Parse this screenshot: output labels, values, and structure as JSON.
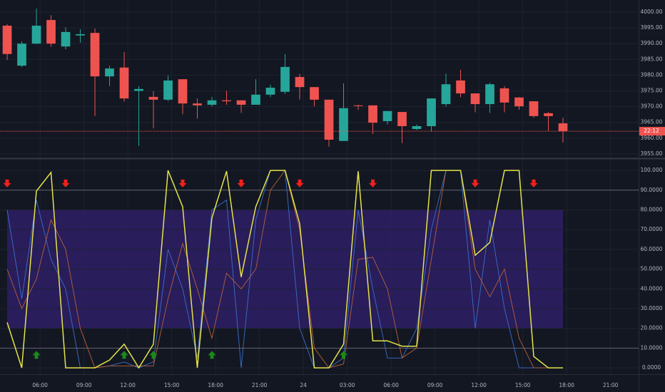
{
  "chart_data": [
    {
      "type": "candlestick",
      "up_color": "#26a69a",
      "down_color": "#ef5350",
      "open": [
        3995.7,
        3983.0,
        3990.0,
        3997.5,
        3989.1,
        3992.6,
        3993.4,
        3979.6,
        3982.4,
        3975.0,
        3973.1,
        3972.2,
        3978.7,
        3971.0,
        3970.6,
        3972.0,
        3972.0,
        3970.6,
        3973.8,
        3974.7,
        3979.4,
        3976.2,
        3972.2,
        3959.1,
        3970.4,
        3970.4,
        3965.4,
        3968.3,
        3962.9,
        3963.8,
        3970.8,
        3978.3,
        3974.2,
        3970.8,
        3975.8,
        3972.9,
        3971.7,
        3967.9,
        3964.7
      ],
      "high": [
        3996.2,
        3990.7,
        4001.1,
        3999.0,
        3995.2,
        3994.6,
        3994.8,
        3983.0,
        3987.3,
        3976.5,
        3974.9,
        3979.9,
        3978.7,
        3972.6,
        3973.1,
        3975.0,
        3972.0,
        3978.7,
        3977.0,
        3986.7,
        3980.4,
        3976.2,
        3972.2,
        3977.4,
        3970.6,
        3970.4,
        3968.6,
        3968.3,
        3964.3,
        3972.6,
        3980.5,
        3981.7,
        3974.2,
        3977.6,
        3976.5,
        3973.0,
        3971.7,
        3968.3,
        3966.5
      ],
      "low": [
        3984.8,
        3982.6,
        3989.8,
        3989.0,
        3988.2,
        3990.3,
        3967.0,
        3976.5,
        3971.6,
        3957.5,
        3963.1,
        3971.7,
        3967.6,
        3966.2,
        3970.0,
        3970.6,
        3968.0,
        3970.6,
        3973.0,
        3974.0,
        3972.2,
        3970.1,
        3957.3,
        3959.1,
        3969.0,
        3961.3,
        3964.3,
        3958.4,
        3962.5,
        3962.0,
        3970.0,
        3973.0,
        3968.2,
        3968.0,
        3968.2,
        3969.0,
        3966.5,
        3962.1,
        3958.6
      ],
      "close": [
        3986.7,
        3990.0,
        3995.7,
        3990.0,
        3993.7,
        3993.0,
        3979.6,
        3982.1,
        3972.6,
        3975.6,
        3972.2,
        3978.3,
        3971.0,
        3970.4,
        3972.0,
        3971.7,
        3970.6,
        3973.8,
        3976.0,
        3982.6,
        3976.2,
        3972.2,
        3959.5,
        3969.5,
        3970.2,
        3964.9,
        3968.6,
        3963.8,
        3963.8,
        3972.6,
        3977.1,
        3974.2,
        3970.8,
        3977.1,
        3971.3,
        3970.1,
        3967.0,
        3967.0,
        3962.2
      ],
      "last_label": "22:12",
      "ylim": [
        3954.07,
        4002.04
      ],
      "yticks": [
        {
          "value": 4000,
          "label": "4000.00"
        },
        {
          "value": 3995,
          "label": "3995.00"
        },
        {
          "value": 3990,
          "label": "3990.00"
        },
        {
          "value": 3985,
          "label": "3985.00"
        },
        {
          "value": 3980,
          "label": "3980.00"
        },
        {
          "value": 3975,
          "label": "3975.00"
        },
        {
          "value": 3970,
          "label": "3970.00"
        },
        {
          "value": 3965,
          "label": "3965.00"
        },
        {
          "value": 3960,
          "label": "3960.00"
        },
        {
          "value": 3955,
          "label": "3955.00"
        }
      ],
      "grid": true
    },
    {
      "type": "line",
      "series": [
        {
          "color": "#3b6fc9",
          "values": [
            80,
            35,
            85,
            55,
            40,
            0,
            0,
            1,
            3,
            0,
            3,
            60,
            40,
            5,
            80,
            85,
            0,
            75,
            100,
            100,
            20,
            0,
            0,
            5,
            80,
            40,
            5,
            5,
            20,
            70,
            100,
            100,
            20,
            75,
            30,
            0,
            0,
            0,
            0
          ]
        },
        {
          "color": "#b8603a",
          "values": [
            50,
            30,
            45,
            75,
            60,
            20,
            0,
            1,
            1,
            1,
            1,
            35,
            63,
            40,
            15,
            48,
            40,
            50,
            90,
            100,
            70,
            10,
            0,
            2,
            55,
            56,
            40,
            5,
            10,
            55,
            100,
            100,
            50,
            36,
            50,
            15,
            0,
            0,
            0
          ]
        },
        {
          "color": "#e3e34a",
          "values": [
            23,
            0,
            89.5,
            99,
            0,
            0,
            0,
            4,
            12,
            0,
            12,
            100,
            81.6,
            0,
            76,
            99.6,
            46,
            81.6,
            100,
            100,
            73,
            0,
            0,
            12,
            99.6,
            13.7,
            13.7,
            11,
            11,
            100,
            100,
            100,
            57,
            63.5,
            100,
            100,
            5.8,
            0,
            0
          ]
        }
      ],
      "band": [
        20,
        80
      ],
      "band_color": "#2e1f66",
      "levels": [
        90,
        10
      ],
      "sell_signals": [
        0,
        4,
        12,
        16,
        20,
        25,
        32,
        36
      ],
      "sell_color": "#f0201c",
      "buy_signals": [
        2,
        8,
        10,
        14,
        23
      ],
      "buy_color": "#1a8a1a",
      "ylim": [
        -3.2,
        105.1
      ],
      "yticks": [
        {
          "value": 100,
          "label": "100.000"
        },
        {
          "value": 90,
          "label": "90.0000"
        },
        {
          "value": 80,
          "label": "80.0000"
        },
        {
          "value": 70,
          "label": "70.0000"
        },
        {
          "value": 60,
          "label": "60.0000"
        },
        {
          "value": 50,
          "label": "50.0000"
        },
        {
          "value": 40,
          "label": "40.0000"
        },
        {
          "value": 30,
          "label": "30.0000"
        },
        {
          "value": 20,
          "label": "20.0000"
        },
        {
          "value": 10,
          "label": "10.0000"
        },
        {
          "value": 0,
          "label": "0.0000"
        }
      ],
      "xlim": [
        -0.49,
        43.17
      ],
      "xticks": [
        {
          "value": 2.25,
          "label": "06:00"
        },
        {
          "value": 5.25,
          "label": "09:00"
        },
        {
          "value": 8.25,
          "label": "12:00"
        },
        {
          "value": 11.25,
          "label": "15:00"
        },
        {
          "value": 14.25,
          "label": "18:00"
        },
        {
          "value": 17.25,
          "label": "21:00"
        },
        {
          "value": 20.25,
          "label": "24"
        },
        {
          "value": 23.25,
          "label": "03:00"
        },
        {
          "value": 26.25,
          "label": "06:00"
        },
        {
          "value": 29.25,
          "label": "09:00"
        },
        {
          "value": 32.25,
          "label": "12:00"
        },
        {
          "value": 35.25,
          "label": "15:00"
        },
        {
          "value": 38.25,
          "label": "18:00"
        },
        {
          "value": 41.25,
          "label": "21:00"
        }
      ],
      "grid": true
    }
  ]
}
